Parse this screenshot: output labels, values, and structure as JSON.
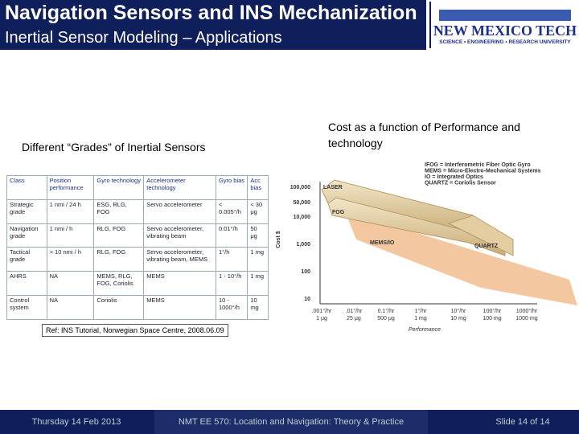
{
  "header": {
    "title": "Navigation Sensors and INS Mechanization",
    "subtitle": "Inertial Sensor Modeling – Applications",
    "logo": {
      "name": "NEW MEXICO TECH",
      "tagline": "SCIENCE • ENGINEERING • RESEARCH UNIVERSITY"
    }
  },
  "left_caption": "Different “Grades” of Inertial Sensors",
  "table": {
    "header": [
      "Class",
      "Position performance",
      "Gyro technology",
      "Accelerometer technology",
      "Gyro bias",
      "Acc bias"
    ],
    "rows": [
      [
        "Strategic grade",
        "1 nmi / 24 h",
        "ESG, RLG, FOG",
        "Servo accelerometer",
        "< 0.005°/h",
        "< 30 μg"
      ],
      [
        "Navigation grade",
        "1 nmi / h",
        "RLG, FOG",
        "Servo accelerometer, vibrating beam",
        "0.01°/h",
        "50 μg"
      ],
      [
        "Tactical grade",
        "> 10 nmi / h",
        "RLG, FOG",
        "Servo accelerometer, vibrating beam, MEMS",
        "1°/h",
        "1 mg"
      ],
      [
        "AHRS",
        "NA",
        "MEMS, RLG, FOG, Coriolis",
        "MEMS",
        "1 - 10°/h",
        "1 mg"
      ],
      [
        "Control system",
        "NA",
        "Coriolis",
        "MEMS",
        "10 - 1000°/h",
        "10 mg"
      ]
    ]
  },
  "reference": "Ref: INS Tutorial, Norwegian Space Centre, 2008.06.09",
  "right_caption": "Cost as a function of Performance and technology",
  "figure": {
    "legend": [
      "IFOG = Interferometric Fiber Optic Gyro",
      "MEMS = Micro-Electro-Mechanical Systems",
      "IO = Integrated Optics",
      "QUARTZ = Coriolis Sensor"
    ],
    "regions": [
      "LASER",
      "FOG",
      "MEMS/IO",
      "QUARTZ"
    ],
    "y_label": "Cost $",
    "y_ticks": [
      "100,000",
      "50,000",
      "10,000",
      "1,000",
      "100",
      "10"
    ],
    "x_ticks": [
      [
        ".001°/hr",
        "1 μg"
      ],
      [
        ".01°/hr",
        "25 μg"
      ],
      [
        "0.1°/hr",
        "500 μg"
      ],
      [
        "1°/hr",
        "1 mg"
      ],
      [
        "10°/hr",
        "10 mg"
      ],
      [
        "100°/hr",
        "100 mg"
      ],
      [
        "1000°/hr",
        "1000 mg"
      ]
    ],
    "x_label": "Performance"
  },
  "footer": {
    "date": "Thursday 14 Feb 2013",
    "course": "NMT EE 570: Location and Navigation: Theory & Practice",
    "slide": "Slide 14 of 14"
  }
}
